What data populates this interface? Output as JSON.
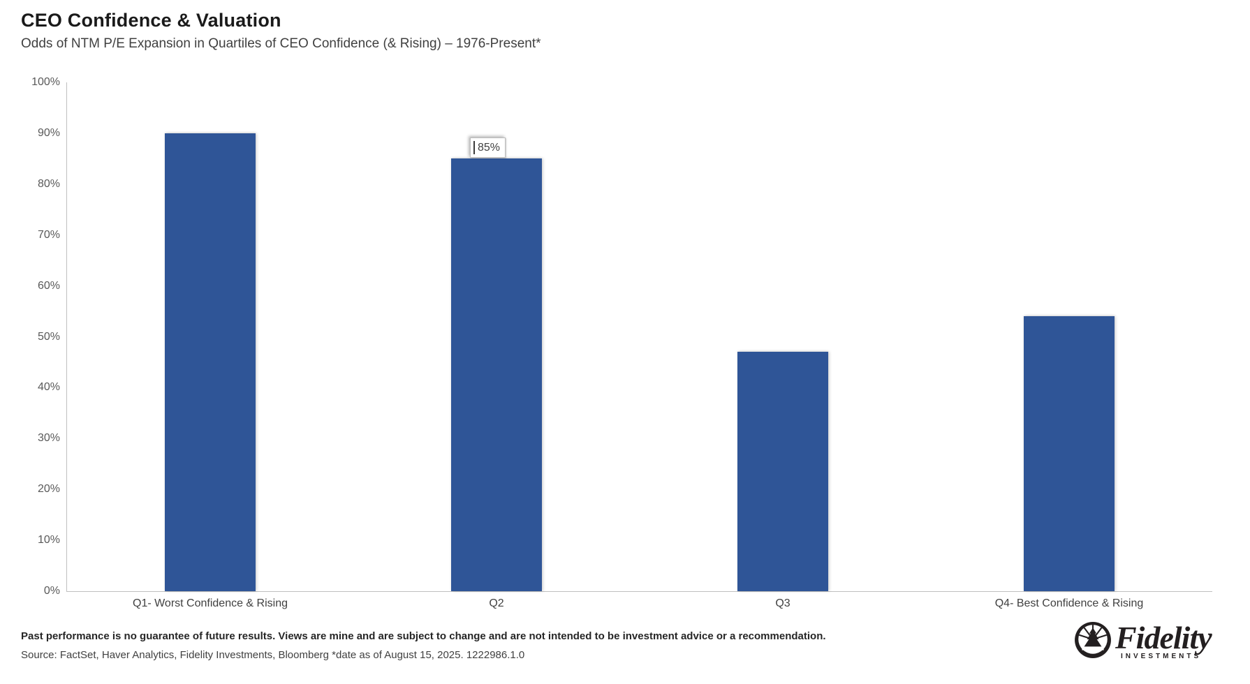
{
  "header": {
    "title": "CEO Confidence & Valuation",
    "subtitle": "Odds of NTM P/E Expansion in Quartiles of CEO Confidence (& Rising) – 1976-Present*"
  },
  "chart_data": {
    "type": "bar",
    "categories": [
      "Q1- Worst Confidence & Rising",
      "Q2",
      "Q3",
      "Q4- Best Confidence & Rising"
    ],
    "values": [
      90,
      85,
      47,
      54
    ],
    "data_labels": [
      "",
      "85%",
      "",
      ""
    ],
    "title": "CEO Confidence & Valuation",
    "xlabel": "",
    "ylabel": "",
    "ylim": [
      0,
      100
    ],
    "ytick_step": 10,
    "ytick_suffix": "%",
    "bar_color": "#2F5597",
    "axis_color": "#bfbfbf",
    "grid": false,
    "legend": false
  },
  "footer": {
    "disclaimer": "Past performance is no guarantee of future results. Views are mine and are subject to change and are not intended to be investment advice or a recommendation.",
    "source": "Source: FactSet, Haver Analytics, Fidelity Investments, Bloomberg *date as of August 15, 2025. 1222986.1.0"
  },
  "logo": {
    "brand": "Fidelity",
    "sub": "INVESTMENTS"
  }
}
